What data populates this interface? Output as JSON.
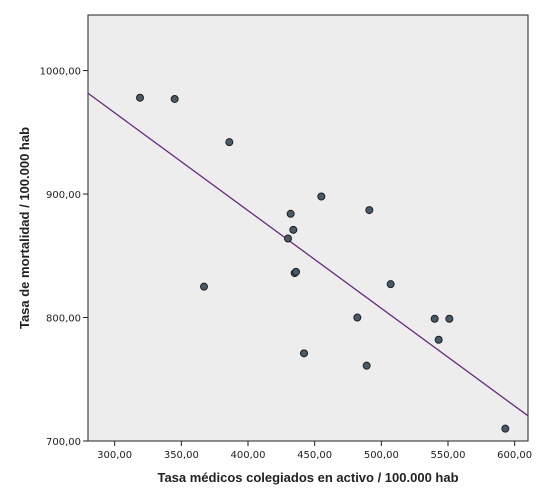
{
  "chart_data": {
    "type": "scatter",
    "xlabel": "Tasa médicos colegiados en activo / 100.000 hab",
    "ylabel": "Tasa de mortalidad / 100.000 hab",
    "xlim": [
      280,
      610
    ],
    "ylim": [
      700,
      1045
    ],
    "x_ticks": [
      300,
      350,
      400,
      450,
      500,
      550,
      600
    ],
    "x_tick_labels": [
      "300,00",
      "350,00",
      "400,00",
      "450,00",
      "500,00",
      "550,00",
      "600,00"
    ],
    "y_ticks": [
      700,
      800,
      900,
      1000
    ],
    "y_tick_labels": [
      "700,00",
      "800,00",
      "900,00",
      "1000,00"
    ],
    "grid": false,
    "points": [
      {
        "x": 319,
        "y": 978
      },
      {
        "x": 345,
        "y": 977
      },
      {
        "x": 367,
        "y": 825
      },
      {
        "x": 386,
        "y": 942
      },
      {
        "x": 430,
        "y": 864
      },
      {
        "x": 432,
        "y": 884
      },
      {
        "x": 434,
        "y": 871
      },
      {
        "x": 435,
        "y": 836
      },
      {
        "x": 436,
        "y": 837
      },
      {
        "x": 442,
        "y": 771
      },
      {
        "x": 455,
        "y": 898
      },
      {
        "x": 482,
        "y": 800
      },
      {
        "x": 489,
        "y": 761
      },
      {
        "x": 491,
        "y": 887
      },
      {
        "x": 507,
        "y": 827
      },
      {
        "x": 540,
        "y": 799
      },
      {
        "x": 543,
        "y": 782
      },
      {
        "x": 551,
        "y": 799
      },
      {
        "x": 593,
        "y": 710
      }
    ],
    "fit_line": {
      "x": [
        280,
        610
      ],
      "y": [
        981.6,
        720.4
      ]
    },
    "colors": {
      "plot_background": "#ededed",
      "point_fill": "#4a5a66",
      "point_stroke": "#1a1f24",
      "fit_line": "#6a2a7a",
      "axis": "#222222"
    }
  }
}
